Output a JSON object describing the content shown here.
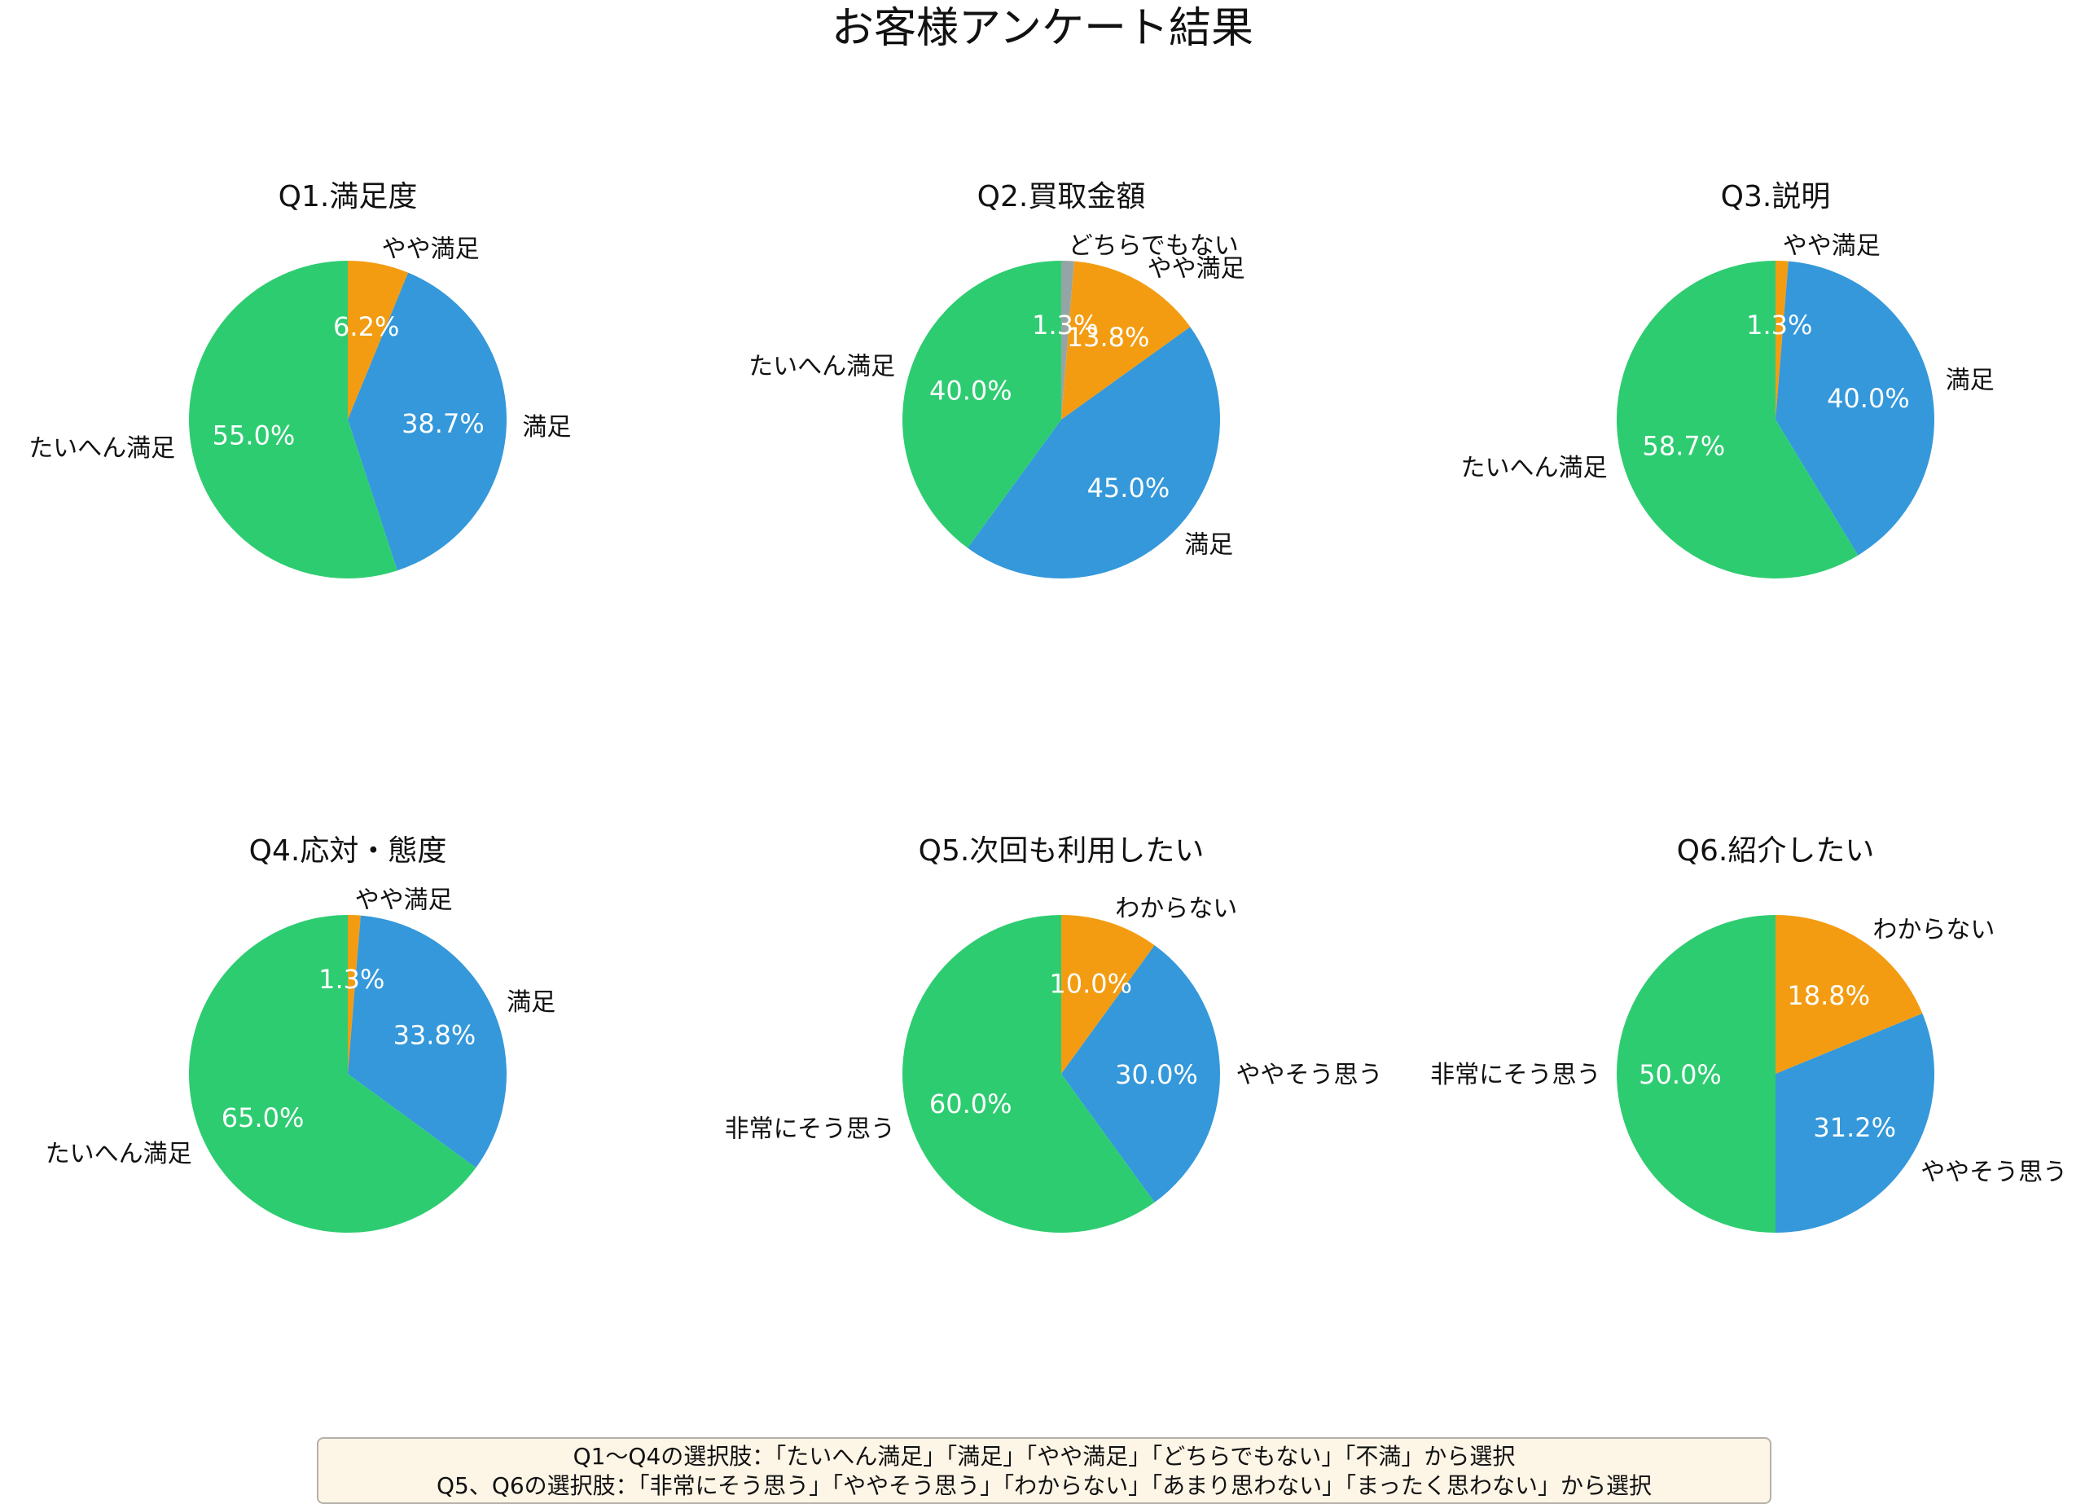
{
  "title": "お客様アンケート結果",
  "colors": {
    "たいへん満足": "#2ecc71",
    "満足": "#3498db",
    "やや満足": "#f39c12",
    "どちらでもない": "#95a5a6",
    "非常にそう思う": "#2ecc71",
    "ややそう思う": "#3498db",
    "わからない": "#f39c12"
  },
  "chart_data": [
    {
      "type": "pie",
      "title": "Q1.満足度",
      "labels": [
        "やや満足",
        "満足",
        "たいへん満足"
      ],
      "values": [
        6.2,
        38.7,
        55.0
      ],
      "value_labels": [
        "6.2%",
        "38.7%",
        "55.0%"
      ]
    },
    {
      "type": "pie",
      "title": "Q2.買取金額",
      "labels": [
        "どちらでもない",
        "やや満足",
        "満足",
        "たいへん満足"
      ],
      "values": [
        1.3,
        13.8,
        45.0,
        40.0
      ],
      "value_labels": [
        "1.3%",
        "13.8%",
        "45.0%",
        "40.0%"
      ]
    },
    {
      "type": "pie",
      "title": "Q3.説明",
      "labels": [
        "やや満足",
        "満足",
        "たいへん満足"
      ],
      "values": [
        1.3,
        40.0,
        58.7
      ],
      "value_labels": [
        "1.3%",
        "40.0%",
        "58.7%"
      ]
    },
    {
      "type": "pie",
      "title": "Q4.応対・態度",
      "labels": [
        "やや満足",
        "満足",
        "たいへん満足"
      ],
      "values": [
        1.3,
        33.8,
        65.0
      ],
      "value_labels": [
        "1.3%",
        "33.8%",
        "65.0%"
      ]
    },
    {
      "type": "pie",
      "title": "Q5.次回も利用したい",
      "labels": [
        "わからない",
        "ややそう思う",
        "非常にそう思う"
      ],
      "values": [
        10.0,
        30.0,
        60.0
      ],
      "value_labels": [
        "10.0%",
        "30.0%",
        "60.0%"
      ]
    },
    {
      "type": "pie",
      "title": "Q6.紹介したい",
      "labels": [
        "わからない",
        "ややそう思う",
        "非常にそう思う"
      ],
      "values": [
        18.8,
        31.2,
        50.0
      ],
      "value_labels": [
        "18.8%",
        "31.2%",
        "50.0%"
      ]
    }
  ],
  "note": {
    "line1": "Q1〜Q4の選択肢：「たいへん満足」「満足」「やや満足」「どちらでもない」「不満」から選択",
    "line2": "Q5、Q6の選択肢：「非常にそう思う」「ややそう思う」「わからない」「あまり思わない」「まったく思わない」から選択"
  }
}
